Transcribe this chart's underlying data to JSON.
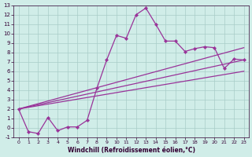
{
  "xlabel": "Windchill (Refroidissement éolien,°C)",
  "bg_color": "#d0ede8",
  "grid_color": "#a8ccc8",
  "line_color": "#993399",
  "xlim": [
    -0.5,
    23.5
  ],
  "ylim": [
    -1,
    13
  ],
  "xticks": [
    0,
    1,
    2,
    3,
    4,
    5,
    6,
    7,
    8,
    9,
    10,
    11,
    12,
    13,
    14,
    15,
    16,
    17,
    18,
    19,
    20,
    21,
    22,
    23
  ],
  "yticks": [
    -1,
    0,
    1,
    2,
    3,
    4,
    5,
    6,
    7,
    8,
    9,
    10,
    11,
    12,
    13
  ],
  "main_x": [
    0,
    1,
    2,
    3,
    4,
    5,
    6,
    7,
    8,
    9,
    10,
    11,
    12,
    13,
    14,
    15,
    16,
    17,
    18,
    19,
    20,
    21,
    22,
    23
  ],
  "main_y": [
    2.0,
    -0.4,
    -0.6,
    1.1,
    -0.3,
    0.1,
    0.1,
    0.8,
    4.2,
    7.2,
    9.8,
    9.5,
    12.0,
    12.7,
    11.0,
    9.2,
    9.2,
    8.1,
    8.4,
    8.6,
    8.5,
    6.3,
    7.3,
    7.2
  ],
  "trend1_x": [
    0,
    23
  ],
  "trend1_y": [
    2.0,
    8.5
  ],
  "trend2_x": [
    0,
    23
  ],
  "trend2_y": [
    2.0,
    7.2
  ],
  "trend3_x": [
    0,
    23
  ],
  "trend3_y": [
    2.0,
    6.0
  ]
}
